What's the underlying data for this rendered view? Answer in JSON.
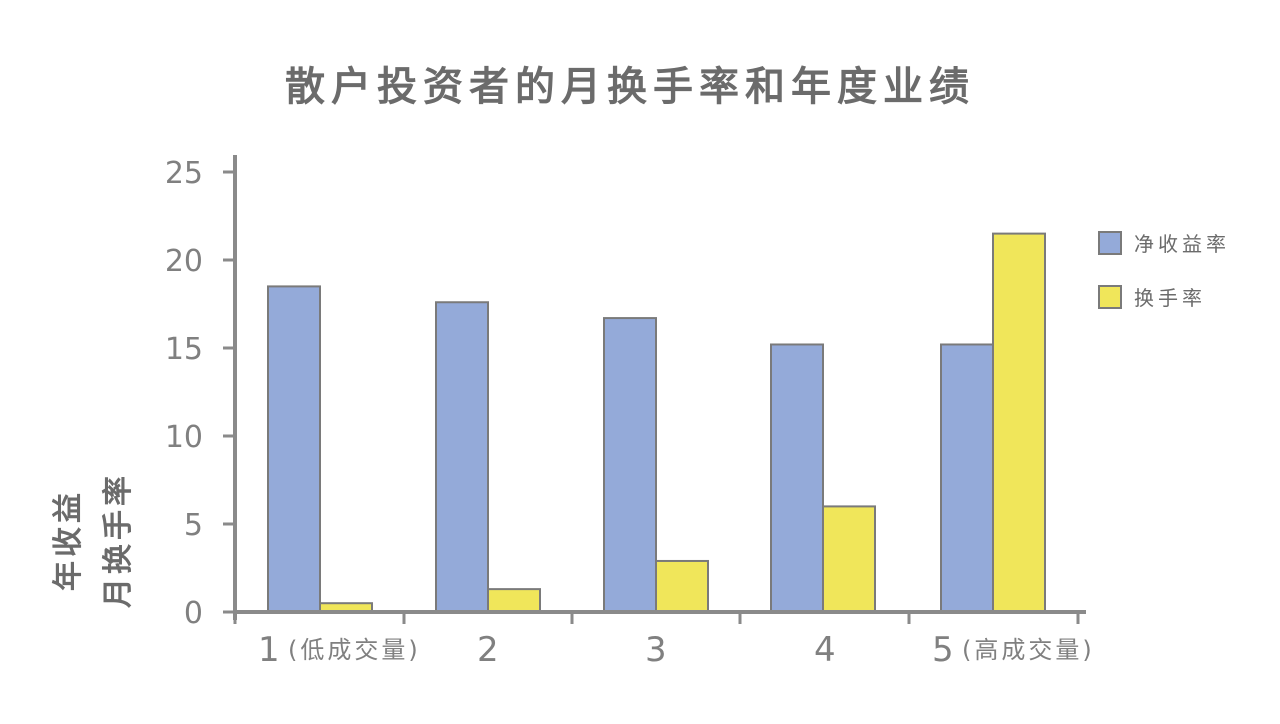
{
  "chart_data": {
    "type": "bar",
    "title": "散户投资者的月换手率和年度业绩",
    "ylabel": [
      "年收益",
      "月换手率"
    ],
    "categories": [
      {
        "num": "1",
        "sub": "(低成交量)"
      },
      {
        "num": "2",
        "sub": ""
      },
      {
        "num": "3",
        "sub": ""
      },
      {
        "num": "4",
        "sub": ""
      },
      {
        "num": "5",
        "sub": "(高成交量)"
      }
    ],
    "series": [
      {
        "name": "净收益率",
        "color": "#94aad9",
        "values": [
          18.5,
          17.6,
          16.7,
          15.2,
          15.2
        ]
      },
      {
        "name": "换手率",
        "color": "#f0e65a",
        "values": [
          0.5,
          1.3,
          2.9,
          6.0,
          21.5
        ]
      }
    ],
    "ylim": [
      0,
      25
    ],
    "yticks": [
      "0",
      "5",
      "10",
      "15",
      "20",
      "25"
    ],
    "grid": false,
    "legend": "right"
  }
}
